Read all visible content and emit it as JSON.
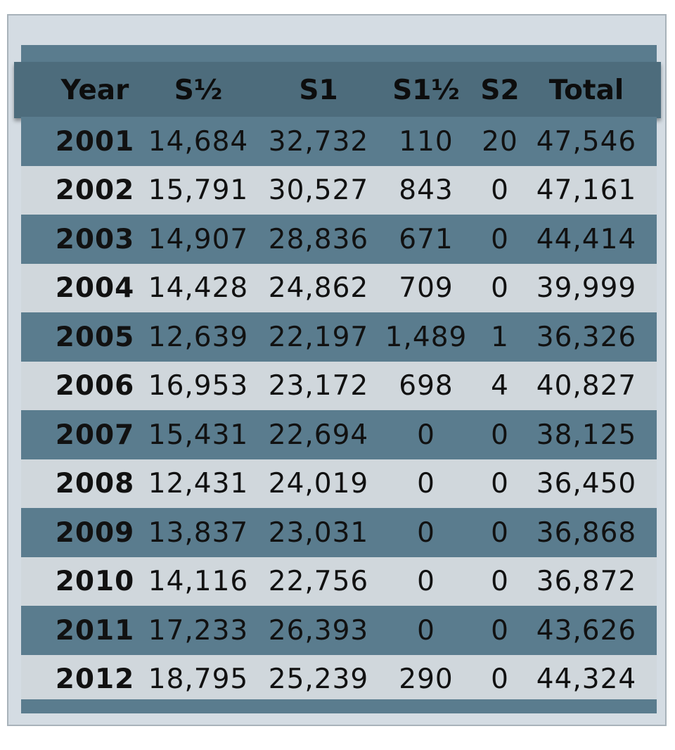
{
  "chart_data": {
    "type": "table",
    "columns": [
      "Year",
      "S½",
      "S1",
      "S1½",
      "S2",
      "Total"
    ],
    "rows": [
      [
        "2001",
        "14,684",
        "32,732",
        "110",
        "20",
        "47,546"
      ],
      [
        "2002",
        "15,791",
        "30,527",
        "843",
        "0",
        "47,161"
      ],
      [
        "2003",
        "14,907",
        "28,836",
        "671",
        "0",
        "44,414"
      ],
      [
        "2004",
        "14,428",
        "24,862",
        "709",
        "0",
        "39,999"
      ],
      [
        "2005",
        "12,639",
        "22,197",
        "1,489",
        "1",
        "36,326"
      ],
      [
        "2006",
        "16,953",
        "23,172",
        "698",
        "4",
        "40,827"
      ],
      [
        "2007",
        "15,431",
        "22,694",
        "0",
        "0",
        "38,125"
      ],
      [
        "2008",
        "12,431",
        "24,019",
        "0",
        "0",
        "36,450"
      ],
      [
        "2009",
        "13,837",
        "23,031",
        "0",
        "0",
        "36,868"
      ],
      [
        "2010",
        "14,116",
        "22,756",
        "0",
        "0",
        "36,872"
      ],
      [
        "2011",
        "17,233",
        "26,393",
        "0",
        "0",
        "43,626"
      ],
      [
        "2012",
        "18,795",
        "25,239",
        "290",
        "0",
        "44,324"
      ]
    ],
    "colors": {
      "panel": "#d4dce3",
      "header": "#4d6c7c",
      "dark_row": "#5a7c8e",
      "light_row": "#d0d7dc"
    }
  }
}
